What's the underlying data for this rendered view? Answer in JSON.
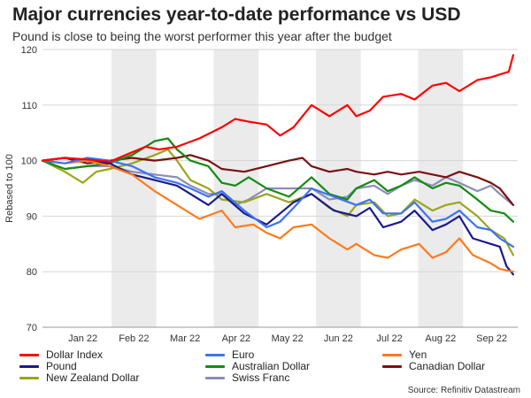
{
  "title": "Major currencies year-to-date performance vs USD",
  "subtitle": "Pound is close to being the worst performer this year after the budget",
  "source": "Source: Refinitiv Datastream",
  "chart_data": {
    "type": "line",
    "title": "Major currencies year-to-date performance vs USD",
    "subtitle": "Pound is close to being the worst performer this year after the budget",
    "xlabel": "",
    "ylabel": "Rebased to 100",
    "ylim": [
      70,
      120
    ],
    "yticks": [
      70,
      80,
      90,
      100,
      110,
      120
    ],
    "categories": [
      "Jan 22",
      "Feb 22",
      "Mar 22",
      "Apr 22",
      "May 22",
      "Jun 22",
      "Jul 22",
      "Aug 22",
      "Sep 22"
    ],
    "shaded_months": [
      "Feb 22",
      "Apr 22",
      "Jun 22",
      "Aug 22"
    ],
    "grid": true,
    "legend_position": "bottom",
    "x_unit": "month index (0 = start of Jan 22, 9 = end of Sep 22)",
    "series": [
      {
        "name": "Dollar Index",
        "color": "#ff0000",
        "points": [
          [
            0,
            100
          ],
          [
            0.5,
            100.5
          ],
          [
            1,
            100.2
          ],
          [
            1.5,
            99.8
          ],
          [
            2,
            101.5
          ],
          [
            2.3,
            102.5
          ],
          [
            2.6,
            102
          ],
          [
            3,
            102.5
          ],
          [
            3.5,
            104
          ],
          [
            4,
            106
          ],
          [
            4.3,
            107.5
          ],
          [
            4.6,
            107
          ],
          [
            5,
            106.5
          ],
          [
            5.3,
            104.5
          ],
          [
            5.6,
            106
          ],
          [
            6,
            110
          ],
          [
            6.4,
            108
          ],
          [
            6.8,
            110
          ],
          [
            7,
            108
          ],
          [
            7.3,
            109
          ],
          [
            7.6,
            111.5
          ],
          [
            8,
            112
          ],
          [
            8.3,
            111
          ],
          [
            8.7,
            113.5
          ],
          [
            9,
            114
          ],
          [
            9.3,
            112.5
          ],
          [
            9.7,
            114.5
          ],
          [
            10,
            115
          ],
          [
            10.4,
            116
          ],
          [
            10.5,
            119
          ]
        ]
      },
      {
        "name": "Euro",
        "color": "#3d72f2",
        "points": [
          [
            0,
            100
          ],
          [
            0.5,
            99.5
          ],
          [
            1,
            100.5
          ],
          [
            1.5,
            100
          ],
          [
            2,
            99
          ],
          [
            2.5,
            97
          ],
          [
            3,
            96
          ],
          [
            3.3,
            95
          ],
          [
            3.7,
            93.5
          ],
          [
            4,
            94.5
          ],
          [
            4.5,
            91
          ],
          [
            5,
            88
          ],
          [
            5.3,
            89
          ],
          [
            5.6,
            91.5
          ],
          [
            6,
            95
          ],
          [
            6.5,
            93.5
          ],
          [
            7,
            92
          ],
          [
            7.3,
            93
          ],
          [
            7.6,
            90.5
          ],
          [
            8,
            90.5
          ],
          [
            8.3,
            92.5
          ],
          [
            8.7,
            89
          ],
          [
            9,
            89.5
          ],
          [
            9.3,
            91
          ],
          [
            9.7,
            88
          ],
          [
            10,
            87.5
          ],
          [
            10.2,
            86
          ],
          [
            10.5,
            84.5
          ]
        ]
      },
      {
        "name": "Yen",
        "color": "#ff7a1a",
        "points": [
          [
            0,
            100
          ],
          [
            0.5,
            99.5
          ],
          [
            1,
            100
          ],
          [
            1.5,
            99
          ],
          [
            2,
            97.5
          ],
          [
            2.5,
            94.5
          ],
          [
            3,
            92
          ],
          [
            3.5,
            89.5
          ],
          [
            4,
            91
          ],
          [
            4.3,
            88
          ],
          [
            4.7,
            88.5
          ],
          [
            5,
            87
          ],
          [
            5.3,
            86
          ],
          [
            5.6,
            88
          ],
          [
            6,
            88.5
          ],
          [
            6.4,
            86
          ],
          [
            6.8,
            84
          ],
          [
            7,
            85
          ],
          [
            7.4,
            83
          ],
          [
            7.7,
            82.5
          ],
          [
            8,
            84
          ],
          [
            8.4,
            85
          ],
          [
            8.7,
            82.5
          ],
          [
            9,
            83.5
          ],
          [
            9.3,
            86
          ],
          [
            9.6,
            83
          ],
          [
            10,
            81.5
          ],
          [
            10.2,
            80.5
          ],
          [
            10.5,
            80
          ]
        ]
      },
      {
        "name": "Pound",
        "color": "#1a1a8c",
        "points": [
          [
            0,
            100
          ],
          [
            0.5,
            100.5
          ],
          [
            1,
            100
          ],
          [
            1.5,
            99.5
          ],
          [
            2,
            97.5
          ],
          [
            2.5,
            96.5
          ],
          [
            3,
            95.5
          ],
          [
            3.3,
            94
          ],
          [
            3.7,
            92
          ],
          [
            4,
            94
          ],
          [
            4.5,
            90.5
          ],
          [
            5,
            88.5
          ],
          [
            5.3,
            90.5
          ],
          [
            5.6,
            92.5
          ],
          [
            6,
            94
          ],
          [
            6.5,
            91
          ],
          [
            7,
            90
          ],
          [
            7.3,
            91.5
          ],
          [
            7.6,
            88
          ],
          [
            8,
            89
          ],
          [
            8.3,
            91
          ],
          [
            8.7,
            87.5
          ],
          [
            9,
            88.5
          ],
          [
            9.3,
            90
          ],
          [
            9.6,
            86
          ],
          [
            10,
            85
          ],
          [
            10.2,
            84.5
          ],
          [
            10.35,
            81
          ],
          [
            10.5,
            79.5
          ]
        ]
      },
      {
        "name": "Australian Dollar",
        "color": "#138a13",
        "points": [
          [
            0,
            100
          ],
          [
            0.5,
            98.5
          ],
          [
            1,
            99
          ],
          [
            1.5,
            99.5
          ],
          [
            2,
            101
          ],
          [
            2.5,
            103.5
          ],
          [
            2.8,
            104
          ],
          [
            3,
            102
          ],
          [
            3.3,
            100
          ],
          [
            3.7,
            99
          ],
          [
            4,
            96
          ],
          [
            4.3,
            95.5
          ],
          [
            4.6,
            97
          ],
          [
            5,
            95
          ],
          [
            5.5,
            93.5
          ],
          [
            6,
            97
          ],
          [
            6.4,
            94
          ],
          [
            6.8,
            93
          ],
          [
            7,
            95
          ],
          [
            7.4,
            96.5
          ],
          [
            7.7,
            94.5
          ],
          [
            8,
            95.5
          ],
          [
            8.3,
            97
          ],
          [
            8.7,
            95
          ],
          [
            9,
            96
          ],
          [
            9.3,
            95.5
          ],
          [
            9.7,
            93
          ],
          [
            10,
            91
          ],
          [
            10.3,
            90.5
          ],
          [
            10.5,
            89
          ]
        ]
      },
      {
        "name": "Canadian Dollar",
        "color": "#7a1010",
        "points": [
          [
            0,
            100
          ],
          [
            0.5,
            100.5
          ],
          [
            1,
            99.5
          ],
          [
            1.5,
            100
          ],
          [
            2,
            100.5
          ],
          [
            2.5,
            100
          ],
          [
            3,
            100.5
          ],
          [
            3.3,
            101
          ],
          [
            3.7,
            100
          ],
          [
            4,
            98.5
          ],
          [
            4.5,
            98
          ],
          [
            5,
            99
          ],
          [
            5.5,
            100
          ],
          [
            5.8,
            100.5
          ],
          [
            6,
            99
          ],
          [
            6.4,
            98
          ],
          [
            6.8,
            98.5
          ],
          [
            7,
            98
          ],
          [
            7.4,
            97.5
          ],
          [
            7.7,
            98
          ],
          [
            8,
            97.5
          ],
          [
            8.4,
            98
          ],
          [
            8.7,
            97.5
          ],
          [
            9,
            97
          ],
          [
            9.3,
            98
          ],
          [
            9.7,
            97
          ],
          [
            10,
            96
          ],
          [
            10.2,
            95
          ],
          [
            10.5,
            92
          ]
        ]
      },
      {
        "name": "New Zealand Dollar",
        "color": "#9aa61a",
        "points": [
          [
            0,
            100
          ],
          [
            0.5,
            98
          ],
          [
            0.9,
            96
          ],
          [
            1.2,
            98
          ],
          [
            1.5,
            98.5
          ],
          [
            2,
            99.5
          ],
          [
            2.5,
            101
          ],
          [
            2.8,
            102
          ],
          [
            3,
            100
          ],
          [
            3.3,
            96.5
          ],
          [
            3.7,
            95
          ],
          [
            4,
            93
          ],
          [
            4.5,
            92.5
          ],
          [
            5,
            94
          ],
          [
            5.5,
            92.5
          ],
          [
            6,
            94
          ],
          [
            6.4,
            91.5
          ],
          [
            6.8,
            90
          ],
          [
            7,
            92
          ],
          [
            7.4,
            92.5
          ],
          [
            7.7,
            90
          ],
          [
            8,
            90.5
          ],
          [
            8.3,
            93
          ],
          [
            8.7,
            91
          ],
          [
            9,
            92
          ],
          [
            9.3,
            92.5
          ],
          [
            9.7,
            90
          ],
          [
            10,
            87.5
          ],
          [
            10.3,
            86
          ],
          [
            10.5,
            83
          ]
        ]
      },
      {
        "name": "Swiss Franc",
        "color": "#8c8cb8",
        "points": [
          [
            0,
            100
          ],
          [
            0.5,
            98.5
          ],
          [
            1,
            99
          ],
          [
            1.5,
            99
          ],
          [
            2,
            98
          ],
          [
            2.5,
            97.5
          ],
          [
            3,
            97
          ],
          [
            3.3,
            95.5
          ],
          [
            3.7,
            94
          ],
          [
            4,
            94
          ],
          [
            4.3,
            92
          ],
          [
            4.6,
            93
          ],
          [
            5,
            95
          ],
          [
            5.5,
            95
          ],
          [
            6,
            95
          ],
          [
            6.4,
            93
          ],
          [
            6.8,
            93.5
          ],
          [
            7,
            95
          ],
          [
            7.4,
            95.5
          ],
          [
            7.7,
            94
          ],
          [
            8,
            95.5
          ],
          [
            8.3,
            96.5
          ],
          [
            8.7,
            95.5
          ],
          [
            9,
            97
          ],
          [
            9.3,
            96
          ],
          [
            9.7,
            94.5
          ],
          [
            10,
            95.5
          ],
          [
            10.2,
            94
          ],
          [
            10.5,
            92
          ]
        ]
      }
    ]
  }
}
